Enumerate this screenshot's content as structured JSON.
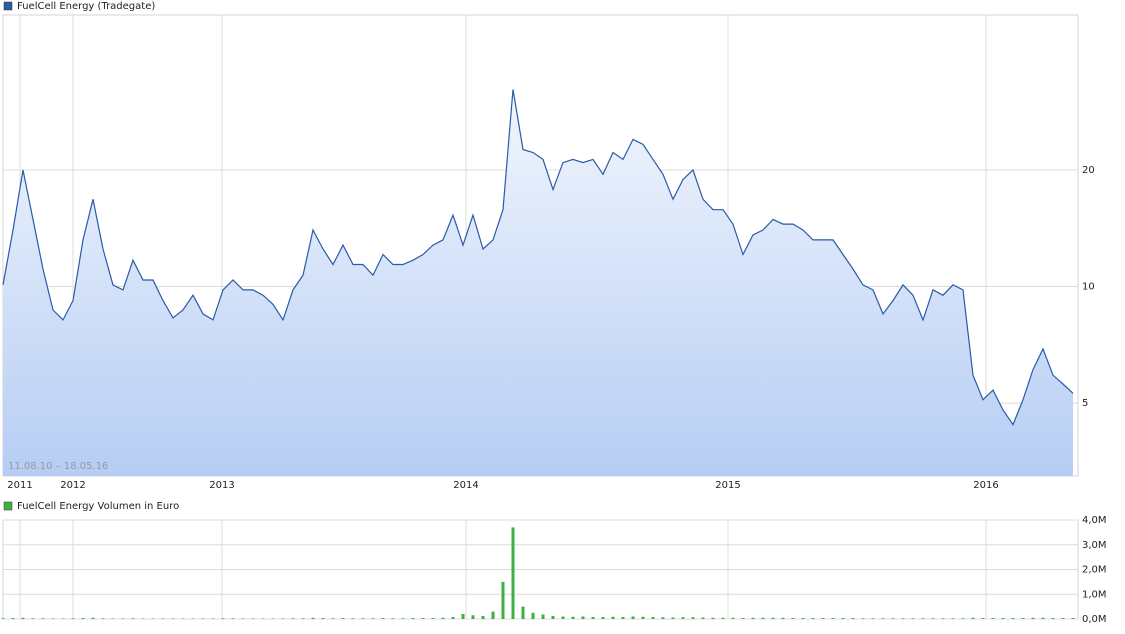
{
  "chart_data": [
    {
      "type": "area",
      "log_scale": true,
      "grid": true,
      "legend": "top-left",
      "annotation": "11.08.10 – 18.05.16",
      "series": [
        {
          "name": "FuelCell Energy (Tradegate)",
          "color": "#2a5aa8",
          "values": [
            10.1,
            14.0,
            20,
            14.9,
            11.1,
            8.7,
            8.2,
            9.2,
            13.2,
            16.8,
            12.5,
            10.1,
            9.8,
            11.7,
            10.4,
            10.4,
            9.2,
            8.3,
            8.7,
            9.5,
            8.5,
            8.2,
            9.8,
            10.4,
            9.8,
            9.8,
            9.5,
            9.0,
            8.2,
            9.8,
            10.7,
            14.0,
            12.5,
            11.4,
            12.8,
            11.4,
            11.4,
            10.7,
            12.1,
            11.4,
            11.4,
            11.7,
            12.1,
            12.8,
            13.2,
            15.3,
            12.8,
            15.3,
            12.5,
            13.2,
            15.8,
            32.3,
            22.6,
            22.2,
            21.3,
            17.8,
            20.9,
            21.3,
            20.9,
            21.3,
            19.5,
            22.2,
            21.3,
            24.0,
            23.3,
            21.3,
            19.5,
            16.8,
            18.9,
            20.0,
            16.8,
            15.8,
            15.8,
            14.5,
            12.1,
            13.6,
            14.0,
            14.9,
            14.5,
            14.5,
            14.0,
            13.2,
            13.2,
            13.2,
            12.1,
            11.1,
            10.1,
            9.8,
            8.5,
            9.2,
            10.1,
            9.5,
            8.2,
            9.8,
            9.5,
            10.1,
            9.8,
            5.9,
            5.1,
            5.4,
            4.8,
            4.4,
            5.1,
            6.1,
            6.9,
            5.9,
            5.6,
            5.3
          ]
        }
      ],
      "xlim": [
        0,
        107.5
      ],
      "xticks": [
        {
          "value": 1.7,
          "label": "2011"
        },
        {
          "value": 7,
          "label": "2012"
        },
        {
          "value": 21.9,
          "label": "2013"
        },
        {
          "value": 46.3,
          "label": "2014"
        },
        {
          "value": 72.5,
          "label": "2015"
        },
        {
          "value": 98.3,
          "label": "2016"
        }
      ],
      "ylim": [
        3.24,
        50.3
      ],
      "yticks": [
        5,
        10,
        20
      ]
    },
    {
      "type": "bar",
      "grid": true,
      "legend": "top-left",
      "series": [
        {
          "name": "FuelCell Energy Volumen in Euro",
          "color": "#3cb043",
          "values": [
            30000,
            40000,
            50000,
            30000,
            30000,
            20000,
            20000,
            30000,
            40000,
            50000,
            30000,
            20000,
            20000,
            30000,
            20000,
            20000,
            20000,
            20000,
            20000,
            20000,
            20000,
            20000,
            30000,
            30000,
            20000,
            20000,
            20000,
            20000,
            20000,
            30000,
            30000,
            50000,
            40000,
            30000,
            40000,
            30000,
            30000,
            30000,
            40000,
            30000,
            30000,
            40000,
            40000,
            40000,
            50000,
            80000,
            200000,
            150000,
            120000,
            300000,
            1500000,
            3700000,
            500000,
            250000,
            180000,
            120000,
            100000,
            90000,
            100000,
            80000,
            80000,
            90000,
            80000,
            100000,
            90000,
            80000,
            70000,
            60000,
            70000,
            70000,
            60000,
            50000,
            50000,
            50000,
            40000,
            50000,
            50000,
            50000,
            50000,
            40000,
            40000,
            40000,
            40000,
            40000,
            40000,
            40000,
            30000,
            30000,
            30000,
            30000,
            30000,
            30000,
            30000,
            30000,
            30000,
            30000,
            30000,
            50000,
            40000,
            40000,
            40000,
            40000,
            40000,
            50000,
            50000,
            40000,
            40000,
            40000
          ]
        }
      ],
      "xlim": [
        0,
        107.5
      ],
      "xticks": [
        1.7,
        7,
        21.9,
        46.3,
        72.5,
        98.3
      ],
      "ylim": [
        0,
        4000000
      ],
      "yticks": [
        {
          "value": 0,
          "label": "0,0M"
        },
        {
          "value": 1000000,
          "label": "1,0M"
        },
        {
          "value": 2000000,
          "label": "2,0M"
        },
        {
          "value": 3000000,
          "label": "3,0M"
        },
        {
          "value": 4000000,
          "label": "4,0M"
        }
      ]
    }
  ]
}
